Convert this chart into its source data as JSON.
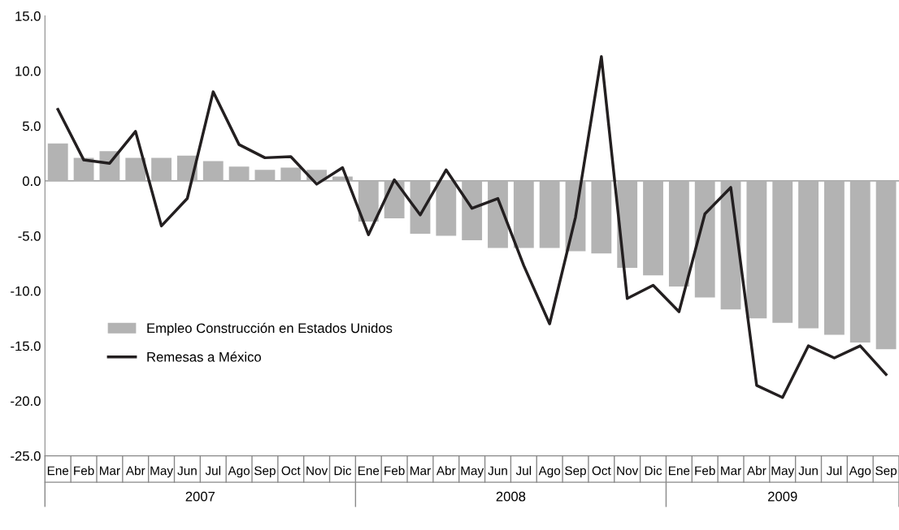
{
  "chart_data": {
    "type": "bar",
    "categories": [
      "Ene",
      "Feb",
      "Mar",
      "Abr",
      "May",
      "Jun",
      "Jul",
      "Ago",
      "Sep",
      "Oct",
      "Nov",
      "Dic",
      "Ene",
      "Feb",
      "Mar",
      "Abr",
      "May",
      "Jun",
      "Jul",
      "Ago",
      "Sep",
      "Oct",
      "Nov",
      "Dic",
      "Ene",
      "Feb",
      "Mar",
      "Abr",
      "May",
      "Jun",
      "Jul",
      "Ago",
      "Sep"
    ],
    "series": [
      {
        "name": "Empleo Construcción en Estados Unidos",
        "color": "#b3b3b3",
        "values": [
          3.4,
          2.1,
          2.7,
          2.1,
          2.1,
          2.3,
          1.8,
          1.3,
          1.0,
          1.2,
          1.0,
          0.4,
          -3.7,
          -3.4,
          -4.8,
          -5.0,
          -5.4,
          -6.1,
          -6.1,
          -6.1,
          -6.4,
          -6.6,
          -7.9,
          -8.6,
          -9.6,
          -10.6,
          -11.7,
          -12.5,
          -12.9,
          -13.4,
          -14.0,
          -14.7,
          -15.3
        ]
      },
      {
        "name": "Remesas a México",
        "type": "line",
        "color": "#231f20",
        "values": [
          6.5,
          1.9,
          1.6,
          4.5,
          -4.1,
          -1.6,
          8.1,
          3.3,
          2.1,
          2.2,
          -0.3,
          1.2,
          -4.9,
          0.1,
          -3.1,
          1.0,
          -2.5,
          -1.6,
          -7.7,
          -13.0,
          -3.3,
          11.3,
          -10.7,
          -9.5,
          -11.9,
          -3.0,
          -0.6,
          -18.6,
          -19.7,
          -15.0,
          -16.1,
          -15.0,
          -17.6
        ]
      }
    ],
    "annotations": [
      "2007",
      "2008",
      "2009"
    ],
    "ylim": [
      -25,
      15
    ],
    "yticks": [
      {
        "value": -25,
        "label": "-25.0"
      },
      {
        "value": -20,
        "label": "-20.0"
      },
      {
        "value": -15,
        "label": "-15.0"
      },
      {
        "value": -10,
        "label": "-10.0"
      },
      {
        "value": -5,
        "label": "-5.0"
      },
      {
        "value": 0,
        "label": "0.0"
      },
      {
        "value": 5,
        "label": "5.0"
      },
      {
        "value": 10,
        "label": "10.0"
      },
      {
        "value": 15,
        "label": "15.0"
      }
    ],
    "ref_lines": [
      {
        "axis": "y",
        "value": 0,
        "color": "#888888"
      }
    ],
    "grid": false,
    "legend": "bottom left",
    "line_style": "solid",
    "marker": "none"
  }
}
